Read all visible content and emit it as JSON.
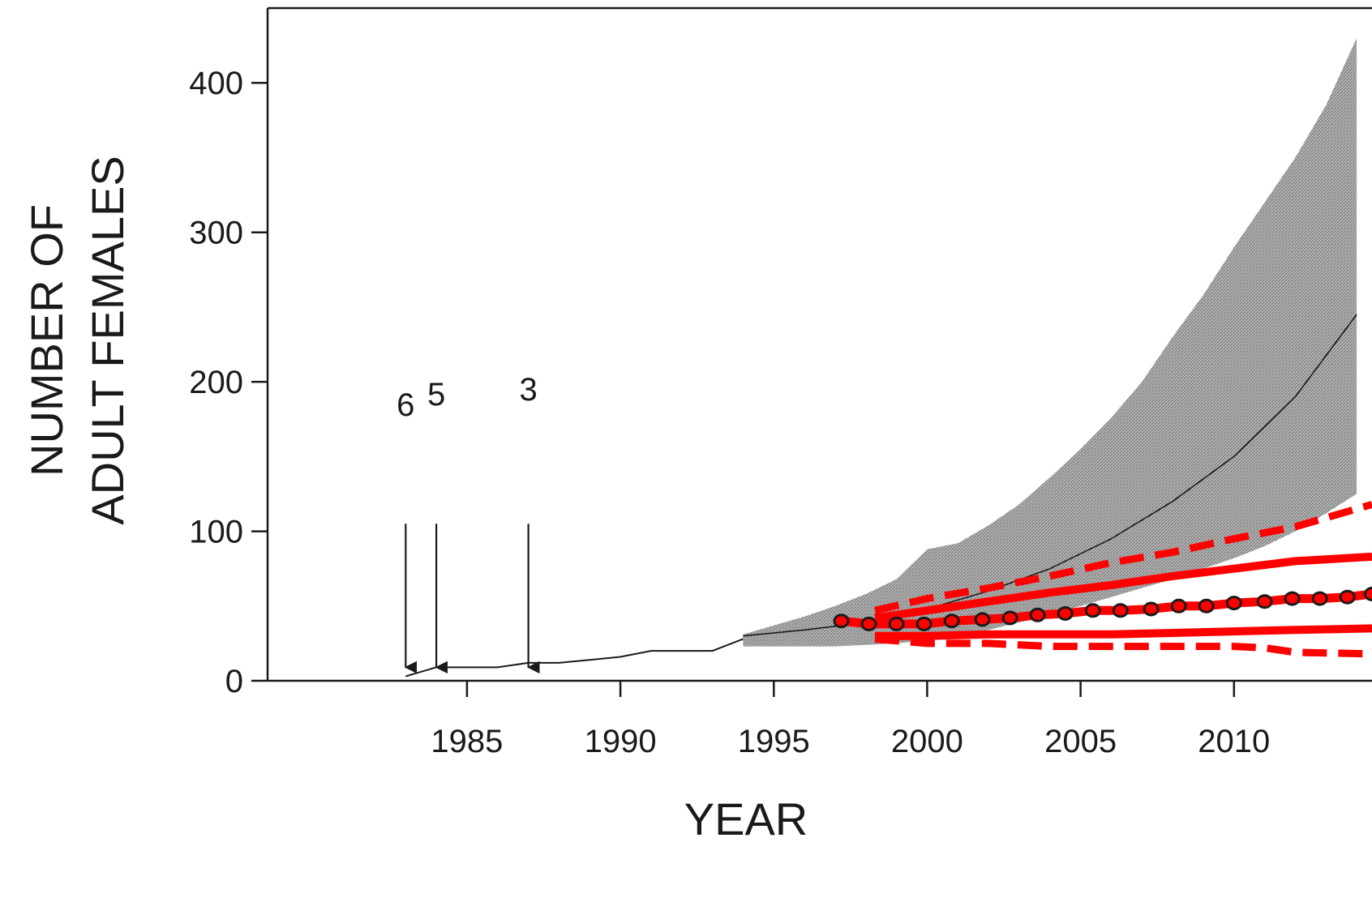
{
  "chart_data": {
    "type": "line",
    "xlabel": "YEAR",
    "ylabel_lines": [
      "NUMBER OF",
      "ADULT FEMALES"
    ],
    "xlim": [
      1978.5,
      2014.5
    ],
    "ylim": [
      0,
      450
    ],
    "xticks": [
      1985,
      1990,
      1995,
      2000,
      2005,
      2010
    ],
    "yticks": [
      0,
      100,
      200,
      300,
      400
    ],
    "xtick_labels": [
      "1985",
      "1990",
      "1995",
      "2000",
      "2005",
      "2010"
    ],
    "ytick_labels": [
      "0",
      "100",
      "200",
      "300",
      "400"
    ],
    "colors": {
      "observed": "#1a1a1a",
      "band": "#9e9e9e",
      "red": "#ff0000",
      "axes": "#1a1a1a"
    },
    "releases": [
      {
        "year": 1983,
        "label": "6"
      },
      {
        "year": 1984,
        "label": "5"
      },
      {
        "year": 1987,
        "label": "3"
      }
    ],
    "observed": {
      "x": [
        1983,
        1984,
        1985,
        1986,
        1987,
        1988,
        1989,
        1990,
        1991,
        1992,
        1993,
        1994
      ],
      "y": [
        3,
        9,
        9,
        9,
        12,
        12,
        14,
        16,
        20,
        20,
        20,
        28
      ]
    },
    "projection_band": {
      "x": [
        1994,
        1995,
        1996,
        1997,
        1998,
        1999,
        2000,
        2001,
        2002,
        2003,
        2004,
        2005,
        2006,
        2007,
        2008,
        2009,
        2010,
        2011,
        2012,
        2013,
        2014
      ],
      "lower": [
        23,
        23,
        23,
        23,
        24,
        25,
        27,
        30,
        34,
        39,
        44,
        50,
        56,
        62,
        68,
        75,
        82,
        90,
        100,
        112,
        125
      ],
      "upper": [
        31,
        37,
        43,
        50,
        58,
        68,
        88,
        92,
        104,
        118,
        136,
        155,
        176,
        200,
        230,
        258,
        290,
        320,
        350,
        385,
        430
      ]
    },
    "projection_mean": {
      "x": [
        1994,
        1996,
        1998,
        2000,
        2002,
        2004,
        2006,
        2008,
        2010,
        2012,
        2014
      ],
      "y": [
        30,
        34,
        39,
        48,
        60,
        75,
        95,
        120,
        150,
        190,
        245
      ]
    },
    "red_dashed_upper": {
      "x": [
        1998.3,
        2000,
        2002,
        2004,
        2006,
        2008,
        2010,
        2012,
        2013.5,
        2014.5
      ],
      "y": [
        47,
        55,
        62,
        70,
        79,
        86,
        95,
        103,
        112,
        118
      ]
    },
    "red_solid_upper": {
      "x": [
        1998.3,
        2000,
        2002,
        2004,
        2006,
        2008,
        2010,
        2012,
        2014.5
      ],
      "y": [
        42,
        47,
        53,
        59,
        64,
        70,
        75,
        80,
        83
      ]
    },
    "red_solid_lower": {
      "x": [
        1998.3,
        2000,
        2002,
        2004,
        2006,
        2008,
        2010,
        2012,
        2014.5
      ],
      "y": [
        30,
        30,
        31,
        31,
        31,
        32,
        33,
        34,
        35
      ]
    },
    "red_dashed_lower": {
      "x": [
        1998.3,
        2000,
        2002,
        2004,
        2006,
        2008,
        2010,
        2011,
        2012,
        2014.5
      ],
      "y": [
        28,
        25,
        25,
        23,
        23,
        23,
        23,
        22,
        19,
        18
      ]
    },
    "red_points": {
      "x": [
        1997.2,
        1998.1,
        1999,
        1999.9,
        2000.8,
        2001.8,
        2002.7,
        2003.6,
        2004.5,
        2005.4,
        2006.3,
        2007.3,
        2008.2,
        2009.1,
        2010,
        2011,
        2011.9,
        2012.8,
        2013.7,
        2014.5
      ],
      "y": [
        40,
        38,
        38,
        38,
        40,
        41,
        42,
        44,
        45,
        47,
        47,
        48,
        50,
        50,
        52,
        53,
        55,
        55,
        56,
        58
      ]
    }
  }
}
